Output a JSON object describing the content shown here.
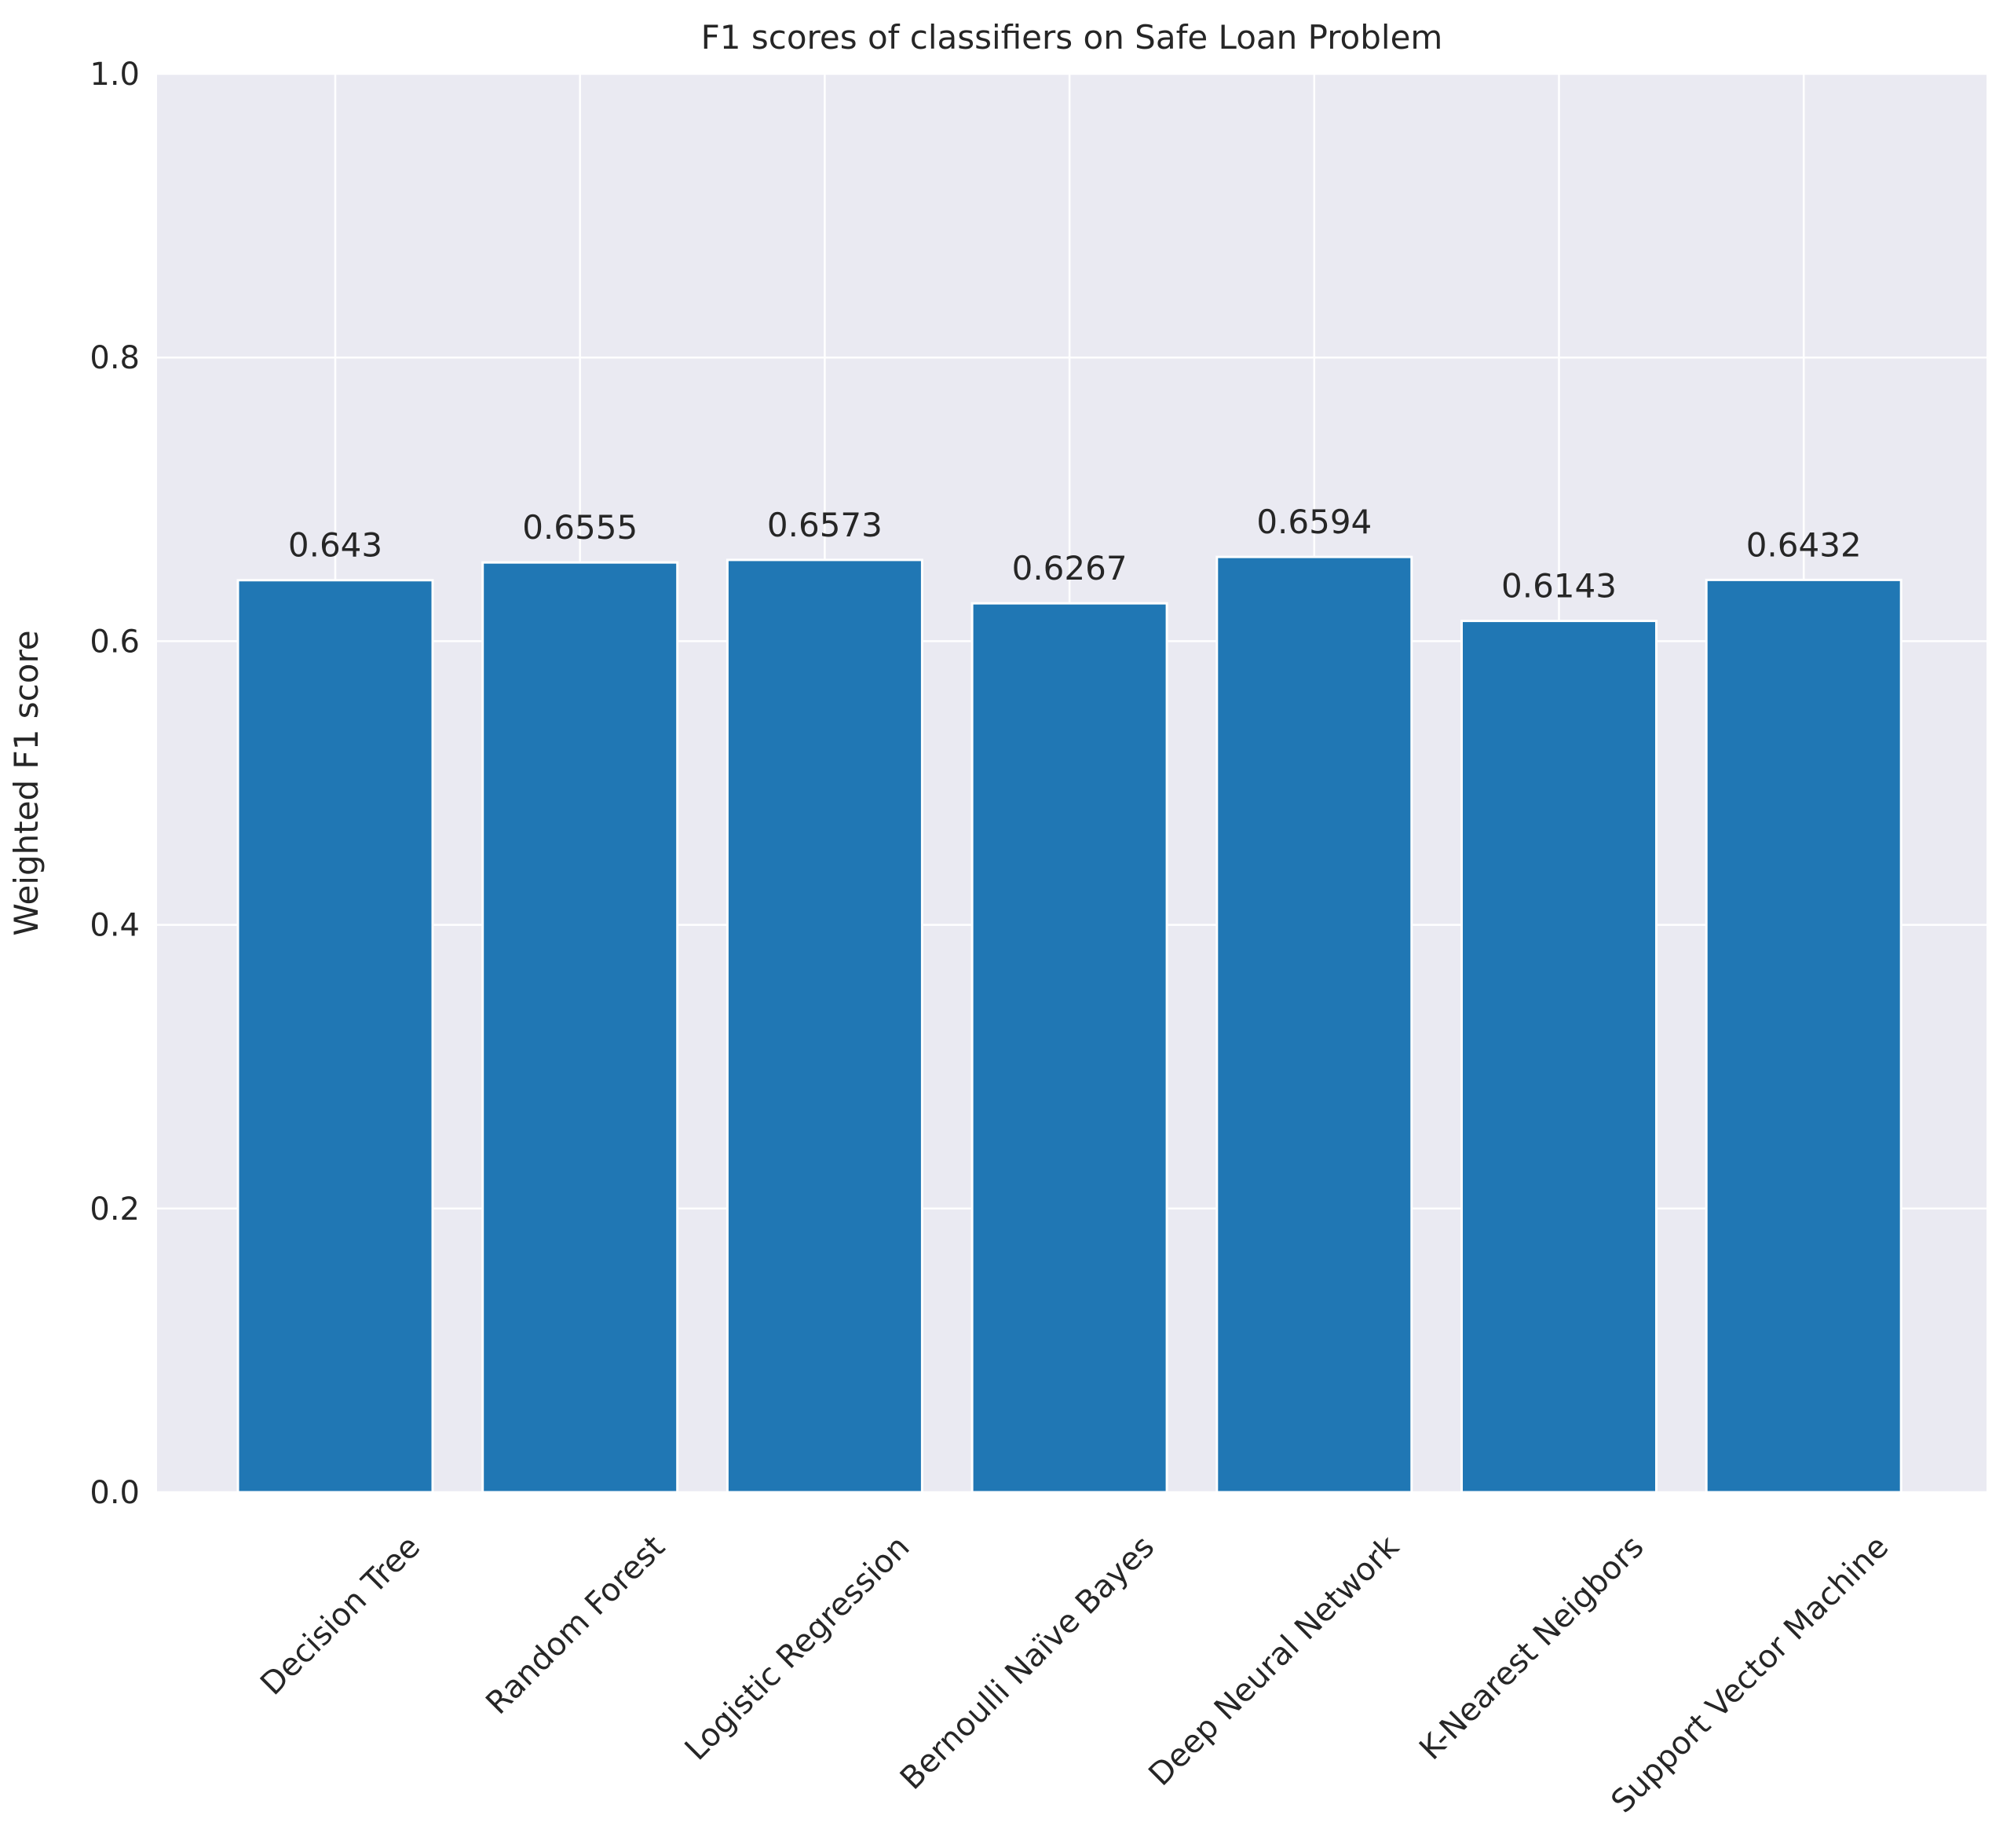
{
  "chart_data": {
    "type": "bar",
    "title": "F1 scores of classifiers on Safe Loan Problem",
    "xlabel": "",
    "ylabel": "Weighted F1 score",
    "ylim": [
      0,
      1.0
    ],
    "yticks": [
      "0.0",
      "0.2",
      "0.4",
      "0.6",
      "0.8",
      "1.0"
    ],
    "ytick_values": [
      0,
      0.2,
      0.4,
      0.6,
      0.8,
      1.0
    ],
    "categories": [
      "Decision Tree",
      "Random Forest",
      "Logistic Regression",
      "Bernoulli Naïve Bayes",
      "Deep Neural Network",
      "K-Nearest Neigbors",
      "Support Vector Machine"
    ],
    "values": [
      0.643,
      0.6555,
      0.6573,
      0.6267,
      0.6594,
      0.6143,
      0.6432
    ],
    "data_labels": [
      "0.643",
      "0.6555",
      "0.6573",
      "0.6267",
      "0.6594",
      "0.6143",
      "0.6432"
    ],
    "grid": true,
    "colors": {
      "bar": "#2077b4",
      "plot_background": "#eaeaf2",
      "grid": "#ffffff",
      "bar_edge": "#ffffff"
    }
  }
}
